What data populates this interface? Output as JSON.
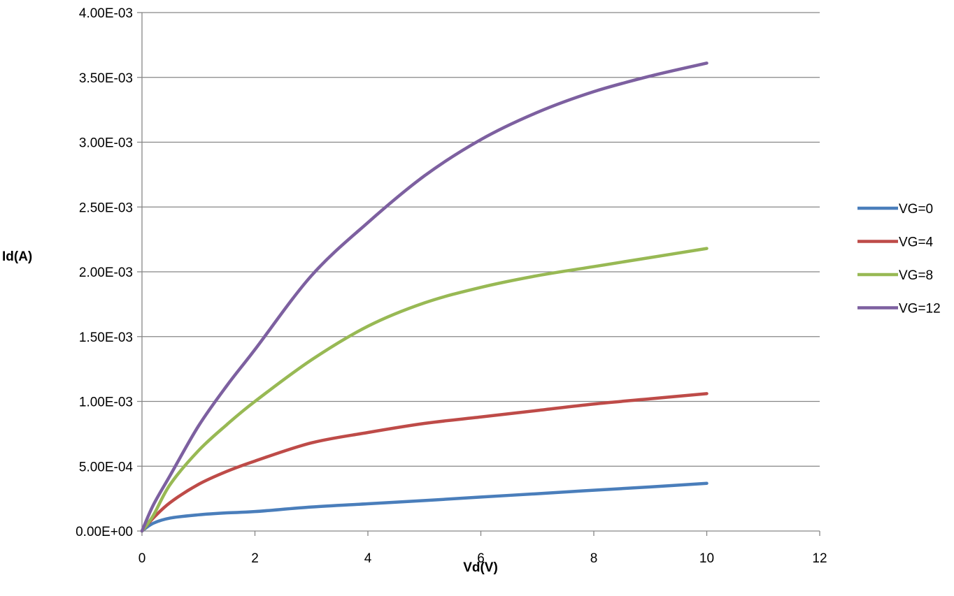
{
  "chart_data": {
    "type": "line",
    "title": "",
    "xlabel": "Vd(V)",
    "ylabel": "Id(A)",
    "xlim": [
      0,
      12
    ],
    "ylim": [
      0,
      0.004
    ],
    "x_ticks": [
      0,
      2,
      4,
      6,
      8,
      10,
      12
    ],
    "x_tick_labels": [
      "0",
      "2",
      "4",
      "6",
      "8",
      "10",
      "12"
    ],
    "y_ticks": [
      0,
      0.0005,
      0.001,
      0.0015,
      0.002,
      0.0025,
      0.003,
      0.0035,
      0.004
    ],
    "y_tick_labels": [
      "0.00E+00",
      "5.00E-04",
      "1.00E-03",
      "1.50E-03",
      "2.00E-03",
      "2.50E-03",
      "3.00E-03",
      "3.50E-03",
      "4.00E-03"
    ],
    "grid": "horizontal",
    "legend_position": "right",
    "x": [
      0,
      0.2,
      0.5,
      1,
      1.5,
      2,
      3,
      4,
      5,
      6,
      7,
      8,
      9,
      10
    ],
    "series": [
      {
        "name": "VG=0",
        "color": "#4a7ebb",
        "values": [
          0,
          6e-05,
          0.0001,
          0.000125,
          0.00014,
          0.00015,
          0.000185,
          0.00021,
          0.000235,
          0.000262,
          0.000288,
          0.000315,
          0.00034,
          0.000368
        ]
      },
      {
        "name": "VG=4",
        "color": "#be4b48",
        "values": [
          0,
          0.0001,
          0.00022,
          0.00036,
          0.00046,
          0.00054,
          0.00068,
          0.00076,
          0.00083,
          0.00088,
          0.00093,
          0.00098,
          0.00102,
          0.00106
        ]
      },
      {
        "name": "VG=8",
        "color": "#98b954",
        "values": [
          0,
          0.00012,
          0.00036,
          0.00062,
          0.00082,
          0.001,
          0.00132,
          0.00158,
          0.00176,
          0.00188,
          0.00197,
          0.00204,
          0.00211,
          0.00218
        ]
      },
      {
        "name": "VG=12",
        "color": "#7d60a0",
        "values": [
          0,
          0.0002,
          0.00043,
          0.00081,
          0.00112,
          0.0014,
          0.00197,
          0.00238,
          0.00274,
          0.00302,
          0.00323,
          0.00339,
          0.00351,
          0.00361
        ]
      }
    ]
  }
}
